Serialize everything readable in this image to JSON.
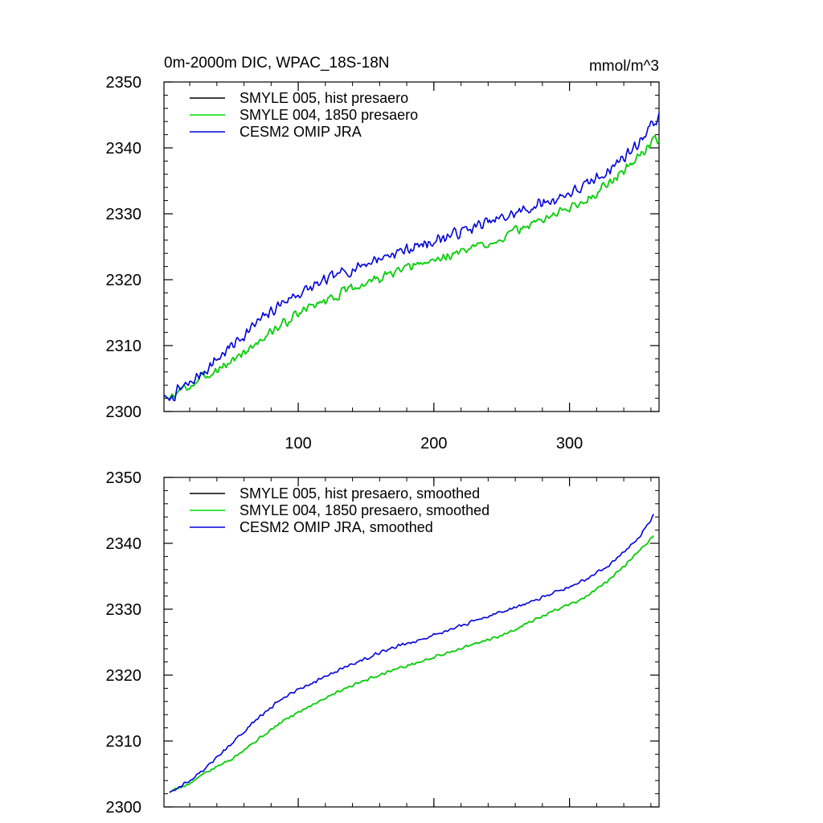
{
  "title_left": "0m-2000m DIC, WPAC_18S-18N",
  "title_right": "mmol/m^3",
  "chart_data": [
    {
      "type": "line",
      "xlim": [
        1,
        366
      ],
      "ylim": [
        2300,
        2350
      ],
      "x_ticks": [
        100,
        200,
        300
      ],
      "x_tick_labels": [
        "100",
        "200",
        "300"
      ],
      "y_ticks": [
        2300,
        2310,
        2320,
        2330,
        2340,
        2350
      ],
      "y_tick_labels": [
        "2300",
        "2310",
        "2320",
        "2330",
        "2340",
        "2350"
      ],
      "legend_position": "top-left",
      "series": [
        {
          "name": "SMYLE 005, hist presaero",
          "color": "#000000",
          "anchors": [
            [
              1,
              2302.5
            ],
            [
              5,
              2301.8
            ],
            [
              12,
              2303.2
            ],
            [
              20,
              2303.8
            ],
            [
              30,
              2305.2
            ],
            [
              50,
              2307.5
            ],
            [
              70,
              2310.5
            ],
            [
              90,
              2313.5
            ],
            [
              110,
              2316.0
            ],
            [
              130,
              2317.8
            ],
            [
              150,
              2319.5
            ],
            [
              170,
              2321.0
            ],
            [
              190,
              2322.3
            ],
            [
              210,
              2323.6
            ],
            [
              230,
              2324.9
            ],
            [
              250,
              2326.3
            ],
            [
              270,
              2328.3
            ],
            [
              290,
              2330.0
            ],
            [
              310,
              2331.8
            ],
            [
              330,
              2334.8
            ],
            [
              350,
              2338.5
            ],
            [
              360,
              2340.8
            ],
            [
              366,
              2341.5
            ]
          ],
          "noise_amp": 0.9,
          "noise_seed": 3
        },
        {
          "name": "SMYLE 004, 1850 presaero",
          "color": "#00dd00",
          "anchors": [
            [
              1,
              2302.5
            ],
            [
              5,
              2301.8
            ],
            [
              12,
              2303.2
            ],
            [
              20,
              2303.8
            ],
            [
              30,
              2305.2
            ],
            [
              50,
              2307.5
            ],
            [
              70,
              2310.5
            ],
            [
              90,
              2313.5
            ],
            [
              110,
              2316.0
            ],
            [
              130,
              2317.8
            ],
            [
              150,
              2319.5
            ],
            [
              170,
              2321.0
            ],
            [
              190,
              2322.3
            ],
            [
              210,
              2323.6
            ],
            [
              230,
              2324.9
            ],
            [
              250,
              2326.3
            ],
            [
              270,
              2328.3
            ],
            [
              290,
              2330.0
            ],
            [
              310,
              2331.8
            ],
            [
              330,
              2334.8
            ],
            [
              350,
              2338.5
            ],
            [
              360,
              2340.8
            ],
            [
              366,
              2341.5
            ]
          ],
          "noise_amp": 0.9,
          "noise_seed": 3
        },
        {
          "name": "CESM2 OMIP JRA",
          "color": "#0000dd",
          "anchors": [
            [
              1,
              2302.5
            ],
            [
              5,
              2301.8
            ],
            [
              12,
              2303.2
            ],
            [
              20,
              2304.2
            ],
            [
              30,
              2306.0
            ],
            [
              50,
              2309.8
            ],
            [
              70,
              2313.5
            ],
            [
              90,
              2316.8
            ],
            [
              110,
              2318.8
            ],
            [
              130,
              2320.8
            ],
            [
              150,
              2322.5
            ],
            [
              170,
              2324.0
            ],
            [
              190,
              2325.2
            ],
            [
              210,
              2326.6
            ],
            [
              230,
              2328.0
            ],
            [
              250,
              2329.3
            ],
            [
              270,
              2330.8
            ],
            [
              290,
              2332.3
            ],
            [
              310,
              2334.0
            ],
            [
              330,
              2336.8
            ],
            [
              350,
              2340.5
            ],
            [
              360,
              2343.5
            ],
            [
              366,
              2344.5
            ]
          ],
          "noise_amp": 1.1,
          "noise_seed": 7
        }
      ]
    },
    {
      "type": "line",
      "xlim": [
        1,
        366
      ],
      "ylim": [
        2300,
        2350
      ],
      "x_ticks": [
        100,
        200,
        300
      ],
      "x_tick_labels": [],
      "y_ticks": [
        2300,
        2310,
        2320,
        2330,
        2340,
        2350
      ],
      "y_tick_labels": [
        "2300",
        "2310",
        "2320",
        "2330",
        "2340",
        "2350"
      ],
      "legend_position": "top-left",
      "series": [
        {
          "name": "SMYLE 005, hist presaero, smoothed",
          "color": "#000000",
          "anchors": [
            [
              5,
              2302.2
            ],
            [
              12,
              2303.0
            ],
            [
              20,
              2303.5
            ],
            [
              30,
              2305.0
            ],
            [
              50,
              2307.2
            ],
            [
              70,
              2310.2
            ],
            [
              90,
              2313.2
            ],
            [
              110,
              2315.5
            ],
            [
              130,
              2317.6
            ],
            [
              150,
              2319.3
            ],
            [
              170,
              2320.8
            ],
            [
              190,
              2322.0
            ],
            [
              210,
              2323.4
            ],
            [
              230,
              2324.7
            ],
            [
              250,
              2326.0
            ],
            [
              270,
              2328.0
            ],
            [
              290,
              2329.9
            ],
            [
              310,
              2331.6
            ],
            [
              330,
              2334.5
            ],
            [
              350,
              2338.5
            ],
            [
              362,
              2341.2
            ]
          ],
          "noise_amp": 0.25,
          "noise_seed": 5
        },
        {
          "name": "SMYLE 004, 1850 presaero, smoothed",
          "color": "#00dd00",
          "anchors": [
            [
              5,
              2302.2
            ],
            [
              12,
              2303.0
            ],
            [
              20,
              2303.5
            ],
            [
              30,
              2305.0
            ],
            [
              50,
              2307.2
            ],
            [
              70,
              2310.2
            ],
            [
              90,
              2313.2
            ],
            [
              110,
              2315.5
            ],
            [
              130,
              2317.6
            ],
            [
              150,
              2319.3
            ],
            [
              170,
              2320.8
            ],
            [
              190,
              2322.0
            ],
            [
              210,
              2323.4
            ],
            [
              230,
              2324.7
            ],
            [
              250,
              2326.0
            ],
            [
              270,
              2328.0
            ],
            [
              290,
              2329.9
            ],
            [
              310,
              2331.6
            ],
            [
              330,
              2334.5
            ],
            [
              350,
              2338.5
            ],
            [
              362,
              2341.2
            ]
          ],
          "noise_amp": 0.25,
          "noise_seed": 5
        },
        {
          "name": "CESM2 OMIP JRA, smoothed",
          "color": "#0000dd",
          "anchors": [
            [
              5,
              2302.2
            ],
            [
              12,
              2303.0
            ],
            [
              20,
              2304.0
            ],
            [
              30,
              2305.6
            ],
            [
              50,
              2309.4
            ],
            [
              70,
              2313.4
            ],
            [
              90,
              2316.8
            ],
            [
              110,
              2318.8
            ],
            [
              130,
              2320.8
            ],
            [
              150,
              2322.6
            ],
            [
              170,
              2324.2
            ],
            [
              190,
              2325.4
            ],
            [
              210,
              2326.8
            ],
            [
              230,
              2328.2
            ],
            [
              250,
              2329.6
            ],
            [
              270,
              2331.0
            ],
            [
              290,
              2332.6
            ],
            [
              310,
              2334.3
            ],
            [
              330,
              2336.8
            ],
            [
              350,
              2340.6
            ],
            [
              362,
              2344.2
            ]
          ],
          "noise_amp": 0.3,
          "noise_seed": 9
        }
      ]
    }
  ]
}
